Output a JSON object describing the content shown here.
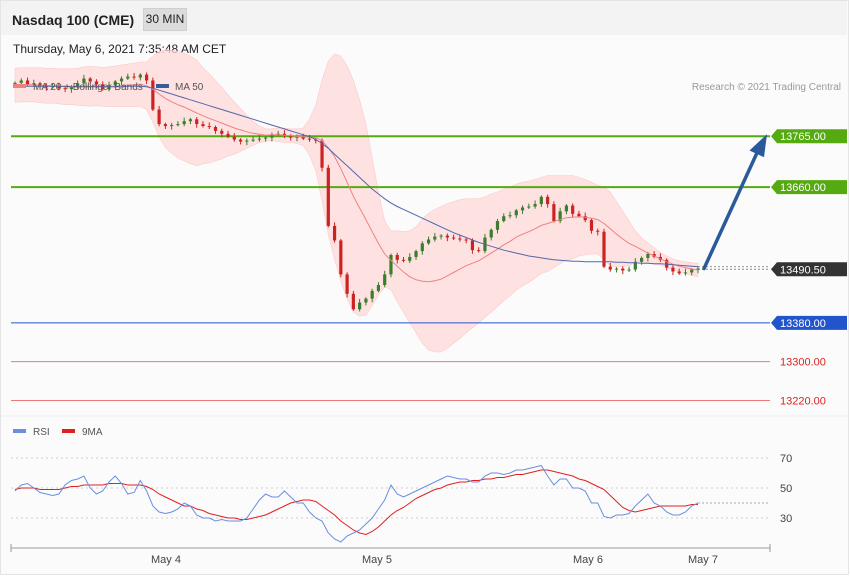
{
  "header": {
    "title": "Nasdaq 100 (CME)",
    "timeframe": "30 MIN",
    "datetime": "Thursday, May 6, 2021 7:35:48 AM CET"
  },
  "legend": {
    "ma20": "MA 20 + Bollinger Bands",
    "ma50": "MA 50",
    "copyright": "Research © 2021 Trading Central"
  },
  "rsi_legend": {
    "rsi": "RSI",
    "ma9": "9MA"
  },
  "colors": {
    "up_candle": "#3a7d2a",
    "down_candle": "#cc2222",
    "bollinger_fill": "#ffdada",
    "ma20": "#f08080",
    "ma50": "#5566aa",
    "resistance": "#55aa11",
    "support": "#2255cc",
    "support_red": "#ee7777",
    "current_price": "#333333",
    "arrow": "#2a5a9a",
    "rsi": "#6a8ee0",
    "rsi_ma": "#e02020"
  },
  "chart_data": [
    {
      "type": "candlestick",
      "x_ticks": [
        "May 4",
        "May 5",
        "May 6",
        "May 7"
      ],
      "ylim": [
        13190,
        13850
      ],
      "price_levels": [
        {
          "label": "13765.00",
          "value": 13765,
          "role": "resistance"
        },
        {
          "label": "13660.00",
          "value": 13660,
          "role": "resistance"
        },
        {
          "label": "13490.50",
          "value": 13490.5,
          "role": "current"
        },
        {
          "label": "13380.00",
          "value": 13380,
          "role": "support"
        },
        {
          "label": "13300.00",
          "value": 13300,
          "role": "support"
        },
        {
          "label": "13220.00",
          "value": 13220,
          "role": "support"
        }
      ],
      "close": [
        13875,
        13880,
        13872,
        13874,
        13870,
        13866,
        13868,
        13864,
        13862,
        13866,
        13874,
        13884,
        13878,
        13872,
        13862,
        13870,
        13878,
        13884,
        13888,
        13886,
        13892,
        13880,
        13820,
        13790,
        13786,
        13788,
        13790,
        13796,
        13800,
        13790,
        13786,
        13784,
        13776,
        13770,
        13764,
        13758,
        13754,
        13756,
        13758,
        13760,
        13762,
        13768,
        13770,
        13766,
        13762,
        13764,
        13760,
        13758,
        13756,
        13700,
        13580,
        13550,
        13480,
        13440,
        13408,
        13422,
        13430,
        13446,
        13458,
        13480,
        13520,
        13510,
        13508,
        13516,
        13528,
        13544,
        13552,
        13558,
        13560,
        13556,
        13554,
        13552,
        13550,
        13530,
        13528,
        13556,
        13572,
        13590,
        13600,
        13602,
        13612,
        13618,
        13620,
        13625,
        13640,
        13625,
        13590,
        13610,
        13622,
        13605,
        13600,
        13592,
        13570,
        13568,
        13496,
        13490,
        13492,
        13488,
        13490,
        13506,
        13514,
        13522,
        13516,
        13510,
        13494,
        13486,
        13482,
        13484,
        13490,
        13492
      ],
      "ma20": [
        13870,
        13871,
        13871,
        13871,
        13870,
        13869,
        13869,
        13868,
        13867,
        13867,
        13867,
        13868,
        13868,
        13868,
        13867,
        13867,
        13868,
        13869,
        13870,
        13871,
        13872,
        13869,
        13862,
        13852,
        13843,
        13836,
        13830,
        13825,
        13819,
        13813,
        13807,
        13802,
        13797,
        13792,
        13787,
        13782,
        13778,
        13774,
        13771,
        13769,
        13767,
        13768,
        13768,
        13767,
        13766,
        13765,
        13764,
        13763,
        13762,
        13756,
        13741,
        13723,
        13698,
        13670,
        13641,
        13617,
        13593,
        13568,
        13544,
        13522,
        13509,
        13497,
        13485,
        13475,
        13469,
        13466,
        13465,
        13467,
        13470,
        13477,
        13484,
        13491,
        13498,
        13503,
        13508,
        13516,
        13524,
        13532,
        13541,
        13548,
        13557,
        13563,
        13568,
        13574,
        13581,
        13585,
        13589,
        13593,
        13597,
        13598,
        13599,
        13598,
        13596,
        13593,
        13585,
        13574,
        13563,
        13553,
        13544,
        13538,
        13531,
        13524,
        13518,
        13512,
        13506,
        13501,
        13497,
        13494,
        13491,
        13489
      ],
      "bb_upper": [
        13905,
        13906,
        13906,
        13906,
        13906,
        13905,
        13905,
        13904,
        13904,
        13904,
        13905,
        13908,
        13909,
        13908,
        13907,
        13908,
        13910,
        13912,
        13914,
        13916,
        13918,
        13918,
        13930,
        13940,
        13944,
        13942,
        13940,
        13936,
        13930,
        13922,
        13906,
        13894,
        13880,
        13866,
        13850,
        13836,
        13822,
        13808,
        13796,
        13786,
        13780,
        13780,
        13782,
        13782,
        13780,
        13780,
        13782,
        13800,
        13830,
        13880,
        13920,
        13935,
        13930,
        13910,
        13880,
        13840,
        13790,
        13720,
        13650,
        13590,
        13570,
        13570,
        13568,
        13570,
        13578,
        13594,
        13606,
        13614,
        13620,
        13626,
        13630,
        13634,
        13636,
        13636,
        13636,
        13640,
        13646,
        13650,
        13656,
        13660,
        13666,
        13670,
        13672,
        13676,
        13680,
        13684,
        13684,
        13684,
        13684,
        13684,
        13680,
        13676,
        13670,
        13664,
        13660,
        13650,
        13630,
        13610,
        13590,
        13570,
        13555,
        13545,
        13535,
        13525,
        13518,
        13512,
        13508,
        13506,
        13504,
        13503
      ],
      "bb_lower": [
        13835,
        13836,
        13836,
        13836,
        13834,
        13833,
        13833,
        13832,
        13830,
        13830,
        13829,
        13828,
        13827,
        13828,
        13827,
        13826,
        13826,
        13826,
        13826,
        13826,
        13826,
        13820,
        13794,
        13764,
        13742,
        13730,
        13720,
        13714,
        13708,
        13704,
        13708,
        13710,
        13714,
        13718,
        13724,
        13728,
        13734,
        13740,
        13746,
        13752,
        13754,
        13756,
        13754,
        13752,
        13752,
        13750,
        13746,
        13726,
        13694,
        13632,
        13562,
        13511,
        13466,
        13430,
        13402,
        13394,
        13396,
        13416,
        13438,
        13454,
        13448,
        13424,
        13402,
        13380,
        13360,
        13338,
        13324,
        13320,
        13320,
        13328,
        13338,
        13348,
        13360,
        13370,
        13380,
        13392,
        13402,
        13414,
        13426,
        13436,
        13448,
        13456,
        13464,
        13472,
        13482,
        13486,
        13494,
        13502,
        13510,
        13512,
        13518,
        13520,
        13522,
        13522,
        13510,
        13498,
        13496,
        13496,
        13498,
        13506,
        13507,
        13503,
        13501,
        13499,
        13494,
        13490,
        13486,
        13482,
        13478,
        13475
      ],
      "ma50": [
        13868,
        13868,
        13868,
        13868,
        13868,
        13868,
        13868,
        13868,
        13868,
        13867,
        13867,
        13867,
        13867,
        13867,
        13867,
        13867,
        13867,
        13867,
        13868,
        13868,
        13868,
        13867,
        13864,
        13860,
        13856,
        13852,
        13848,
        13844,
        13840,
        13836,
        13832,
        13828,
        13824,
        13820,
        13816,
        13812,
        13808,
        13804,
        13800,
        13796,
        13792,
        13788,
        13784,
        13780,
        13776,
        13772,
        13768,
        13764,
        13758,
        13750,
        13740,
        13728,
        13716,
        13704,
        13692,
        13680,
        13668,
        13656,
        13646,
        13636,
        13627,
        13620,
        13614,
        13608,
        13602,
        13596,
        13590,
        13584,
        13578,
        13572,
        13566,
        13561,
        13556,
        13551,
        13546,
        13542,
        13538,
        13534,
        13530,
        13527,
        13524,
        13521,
        13518,
        13516,
        13514,
        13512,
        13510,
        13509,
        13508,
        13507,
        13507,
        13506,
        13506,
        13506,
        13506,
        13506,
        13505,
        13505,
        13504,
        13504,
        13503,
        13503,
        13502,
        13502,
        13501,
        13500,
        13499,
        13498,
        13497,
        13496
      ]
    },
    {
      "type": "line",
      "name": "RSI",
      "ylim": [
        12,
        82
      ],
      "y_ticks": [
        70,
        50,
        30
      ],
      "rsi": [
        48,
        52,
        53,
        50,
        47,
        46,
        45,
        46,
        52,
        55,
        56,
        58,
        50,
        46,
        48,
        54,
        58,
        53,
        46,
        47,
        55,
        48,
        38,
        34,
        33,
        34,
        36,
        40,
        38,
        32,
        30,
        30,
        28,
        29,
        28,
        28,
        28,
        30,
        36,
        42,
        46,
        44,
        44,
        48,
        44,
        40,
        40,
        34,
        30,
        28,
        20,
        16,
        14,
        18,
        20,
        22,
        26,
        30,
        36,
        42,
        52,
        46,
        44,
        46,
        48,
        50,
        52,
        54,
        56,
        58,
        57,
        56,
        56,
        54,
        54,
        58,
        60,
        60,
        59,
        60,
        62,
        62,
        63,
        64,
        65,
        58,
        52,
        56,
        56,
        50,
        50,
        48,
        40,
        40,
        31,
        30,
        32,
        32,
        33,
        38,
        42,
        46,
        40,
        38,
        34,
        32,
        32,
        34,
        38,
        40
      ],
      "ma9": [
        49,
        50,
        50,
        50,
        49,
        49,
        49,
        49,
        50,
        51,
        51,
        52,
        52,
        52,
        52,
        53,
        53,
        53,
        52,
        52,
        52,
        51,
        49,
        46,
        44,
        42,
        40,
        38,
        38,
        36,
        35,
        33,
        32,
        31,
        30,
        30,
        29,
        29,
        30,
        31,
        32,
        34,
        36,
        38,
        40,
        41,
        42,
        42,
        41,
        38,
        35,
        32,
        28,
        25,
        22,
        20,
        19,
        21,
        24,
        28,
        32,
        35,
        37,
        40,
        43,
        45,
        47,
        49,
        50,
        52,
        53,
        54,
        54,
        55,
        55,
        56,
        56,
        57,
        57,
        58,
        59,
        59,
        60,
        61,
        62,
        62,
        61,
        60,
        59,
        58,
        56,
        55,
        53,
        51,
        49,
        45,
        41,
        37,
        35,
        34,
        35,
        36,
        37,
        38,
        38,
        38,
        38,
        38,
        39,
        39
      ]
    }
  ]
}
